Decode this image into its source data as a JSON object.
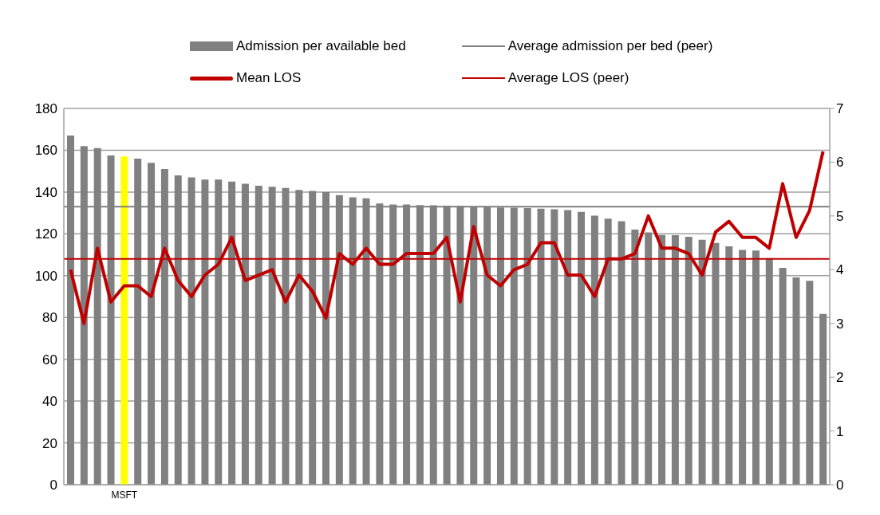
{
  "chart_data": {
    "type": "bar",
    "legend": "top",
    "grid": "y",
    "marker": "none",
    "line_style": "solid",
    "categories": [
      null,
      null,
      null,
      null,
      "MSFT",
      null,
      null,
      null,
      null,
      null,
      null,
      null,
      null,
      null,
      null,
      null,
      null,
      null,
      null,
      null,
      null,
      null,
      null,
      null,
      null,
      null,
      null,
      null,
      null,
      null,
      null,
      null,
      null,
      null,
      null,
      null,
      null,
      null,
      null,
      null,
      null,
      null,
      null,
      null,
      null,
      null,
      null,
      null,
      null,
      null,
      null,
      null,
      null,
      null,
      null,
      null,
      null
    ],
    "series": [
      {
        "name": "Admission per available bed",
        "color": "#808080",
        "colors": [
          "#808080",
          "#808080",
          "#808080",
          "#808080",
          "#ffff00",
          "#808080",
          "#808080",
          "#808080",
          "#808080",
          "#808080",
          "#808080",
          "#808080",
          "#808080",
          "#808080",
          "#808080",
          "#808080",
          "#808080",
          "#808080",
          "#808080",
          "#808080",
          "#808080",
          "#808080",
          "#808080",
          "#808080",
          "#808080",
          "#808080",
          "#808080",
          "#808080",
          "#808080",
          "#808080",
          "#808080",
          "#808080",
          "#808080",
          "#808080",
          "#808080",
          "#808080",
          "#808080",
          "#808080",
          "#808080",
          "#808080",
          "#808080",
          "#808080",
          "#808080",
          "#808080",
          "#808080",
          "#808080",
          "#808080",
          "#808080",
          "#808080",
          "#808080",
          "#808080",
          "#808080",
          "#808080",
          "#808080",
          "#808080",
          "#808080",
          "#808080"
        ],
        "values": [
          167,
          162,
          161,
          157.5,
          157,
          156,
          154,
          151,
          148,
          147,
          146,
          146,
          145,
          144,
          143,
          142.5,
          142,
          141,
          140.5,
          140,
          138.5,
          137.5,
          137,
          134.5,
          134,
          134,
          133.8,
          133.7,
          133.5,
          133.4,
          133,
          132.8,
          132.6,
          132.5,
          132.3,
          132,
          131.8,
          131.4,
          130.5,
          128.7,
          127.3,
          126,
          122,
          120.7,
          119.5,
          119.4,
          118.6,
          117.2,
          115.6,
          114,
          112.3,
          112,
          108.4,
          103.7,
          99.2,
          97.5,
          81.7
        ]
      },
      {
        "name": "Mean LOS",
        "type": "line",
        "axis": "y2",
        "color": "#c00000",
        "values": [
          4.0,
          3.0,
          4.4,
          3.4,
          3.7,
          3.7,
          3.5,
          4.4,
          3.8,
          3.5,
          3.9,
          4.1,
          4.6,
          3.8,
          3.9,
          4.0,
          3.4,
          3.9,
          3.6,
          3.1,
          4.3,
          4.1,
          4.4,
          4.1,
          4.1,
          4.3,
          4.3,
          4.3,
          4.6,
          3.4,
          4.8,
          3.9,
          3.7,
          4.0,
          4.1,
          4.5,
          4.5,
          3.9,
          3.9,
          3.5,
          4.2,
          4.2,
          4.3,
          5.0,
          4.4,
          4.4,
          4.3,
          3.9,
          4.7,
          4.9,
          4.6,
          4.6,
          4.4,
          5.6,
          4.6,
          5.1,
          6.2
        ]
      }
    ],
    "ref_lines": [
      {
        "axis": "y",
        "value": 133,
        "label": "Average admission per bed (peer)",
        "color": "#808080"
      },
      {
        "axis": "y2",
        "value": 4.2,
        "label": "Average LOS (peer)",
        "color": "#c00000"
      }
    ],
    "ylim": [
      0,
      180
    ],
    "yticks": [
      0,
      20,
      40,
      60,
      80,
      100,
      120,
      140,
      160,
      180
    ],
    "y2lim": [
      0,
      7
    ],
    "y2ticks": [
      0,
      1,
      2,
      3,
      4,
      5,
      6,
      7
    ]
  }
}
